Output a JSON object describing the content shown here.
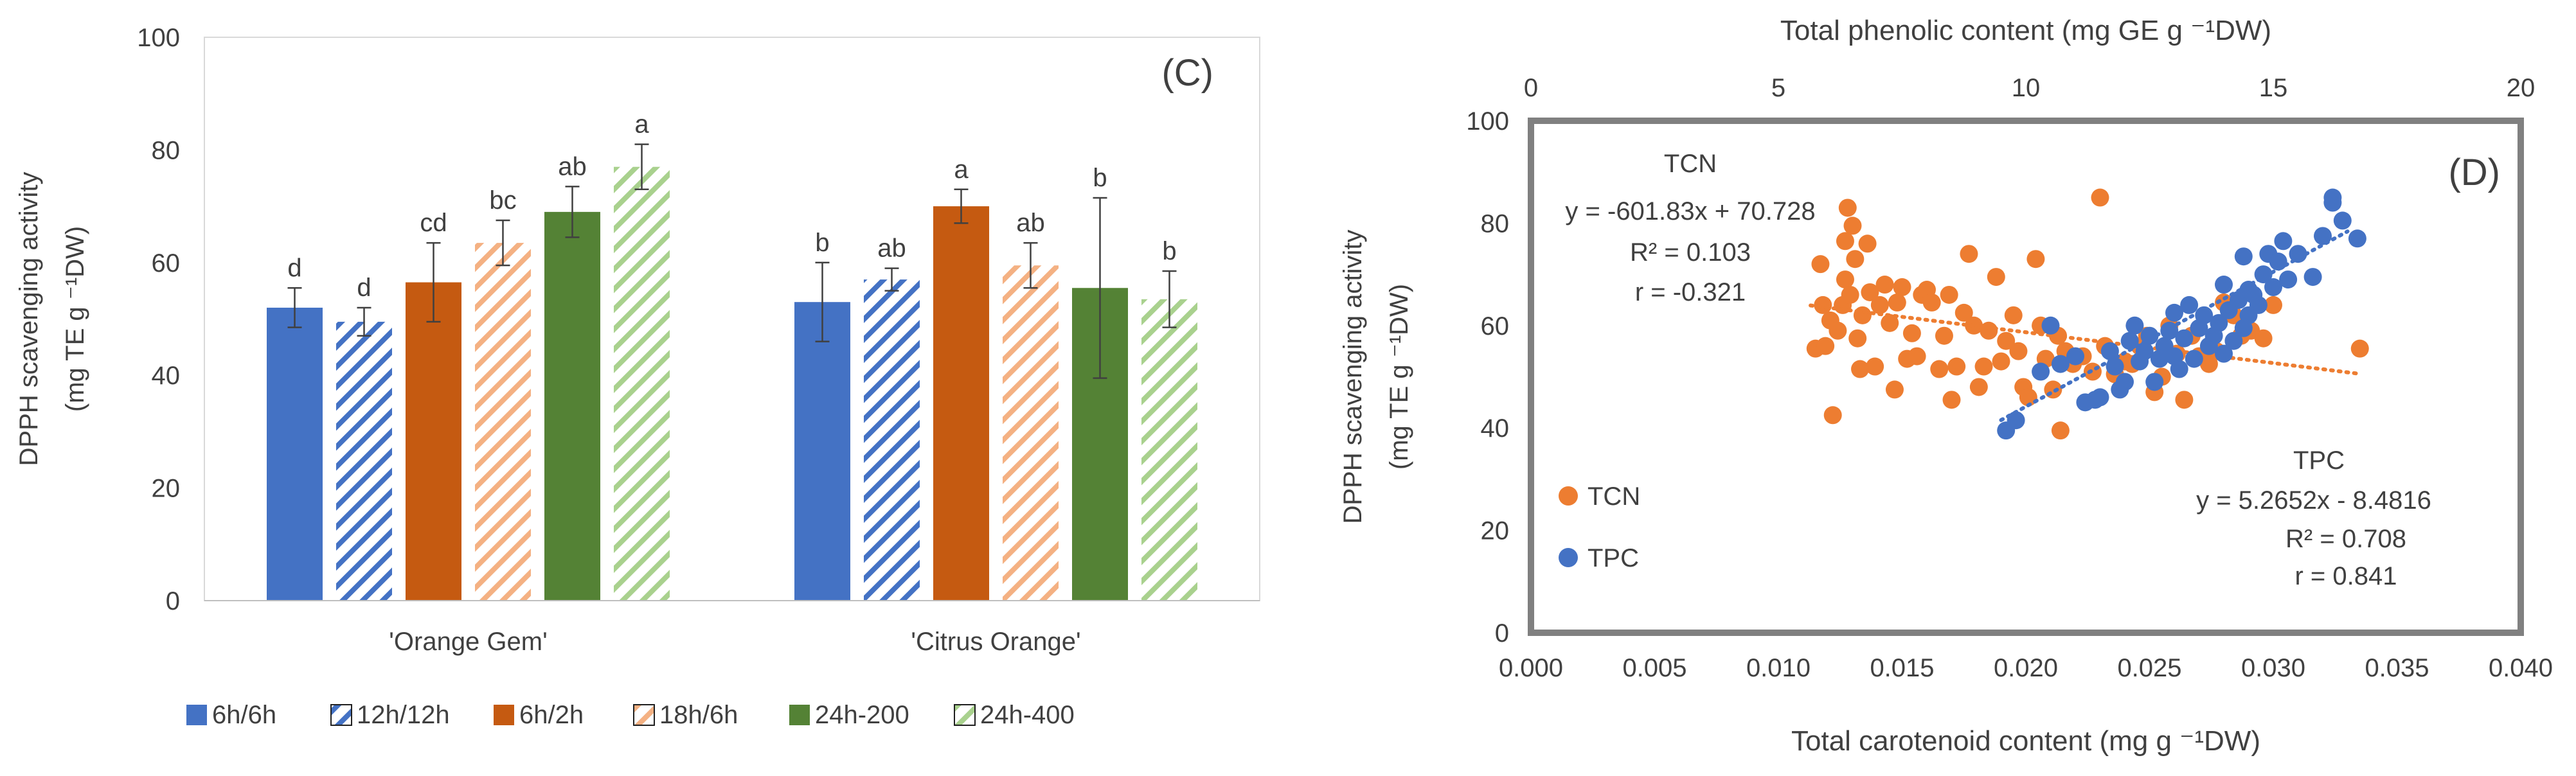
{
  "chart_data": [
    {
      "type": "bar",
      "panel_label": "(C)",
      "ylabel_line1": "DPPH scavenging activity",
      "ylabel_line2": "(mg TE g ⁻¹DW)",
      "ylim": [
        0,
        100
      ],
      "yticks": [
        0,
        20,
        40,
        60,
        80,
        100
      ],
      "categories": [
        "'Orange Gem'",
        "'Citrus Orange'"
      ],
      "legend_position": "bottom",
      "series": [
        {
          "name": "6h/6h",
          "style": "solid",
          "color": "#4472C4",
          "values": [
            52.0,
            53.0
          ],
          "errors": [
            3.5,
            7.0
          ],
          "letters": [
            "d",
            "b"
          ]
        },
        {
          "name": "12h/12h",
          "style": "hatched",
          "color": "#4472C4",
          "values": [
            49.5,
            57.0
          ],
          "errors": [
            2.5,
            2.0
          ],
          "letters": [
            "d",
            "ab"
          ]
        },
        {
          "name": "6h/2h",
          "style": "solid",
          "color": "#C55A11",
          "values": [
            56.5,
            70.0
          ],
          "errors": [
            7.0,
            3.0
          ],
          "letters": [
            "cd",
            "a"
          ]
        },
        {
          "name": "18h/6h",
          "style": "hatched",
          "color": "#F4B183",
          "values": [
            63.5,
            59.5
          ],
          "errors": [
            4.0,
            4.0
          ],
          "letters": [
            "bc",
            "ab"
          ]
        },
        {
          "name": "24h-200",
          "style": "solid",
          "color": "#548235",
          "values": [
            69.0,
            55.5
          ],
          "errors": [
            4.5,
            16.0
          ],
          "letters": [
            "ab",
            "b"
          ]
        },
        {
          "name": "24h-400",
          "style": "hatched",
          "color": "#A9D18E",
          "values": [
            77.0,
            53.5
          ],
          "errors": [
            4.0,
            5.0
          ],
          "letters": [
            "a",
            "b"
          ]
        }
      ]
    },
    {
      "type": "scatter",
      "panel_label": "(D)",
      "ylabel_line1": "DPPH scavenging activity",
      "ylabel_line2": "(mg TE g ⁻¹DW)",
      "xlabel": "Total carotenoid content  (mg g ⁻¹DW)",
      "x2label": "Total phenolic content (mg GE g ⁻¹DW)",
      "xlim": [
        0,
        0.04
      ],
      "xticks": [
        "0.000",
        "0.005",
        "0.010",
        "0.015",
        "0.020",
        "0.025",
        "0.030",
        "0.035",
        "0.040"
      ],
      "x2lim": [
        0,
        20
      ],
      "x2ticks": [
        "0",
        "5",
        "10",
        "15",
        "20"
      ],
      "ylim": [
        0,
        100
      ],
      "yticks": [
        0,
        20,
        40,
        60,
        80,
        100
      ],
      "series": [
        {
          "name": "TCN",
          "color": "#ED7D31",
          "axis": "bottom",
          "trend_line": [
            "TCN",
            "y = -601.83x + 70.728",
            "R² = 0.103",
            "r = -0.321"
          ],
          "fit": {
            "slope": -601.83,
            "intercept": 70.728,
            "x_range": [
              0.0113,
              0.0335
            ]
          },
          "points": [
            [
              0.0115,
              55.5
            ],
            [
              0.0117,
              72.0
            ],
            [
              0.0118,
              64.0
            ],
            [
              0.0119,
              56.0
            ],
            [
              0.0121,
              61.0
            ],
            [
              0.0122,
              42.5
            ],
            [
              0.0124,
              59.0
            ],
            [
              0.0126,
              64.0
            ],
            [
              0.0127,
              69.0
            ],
            [
              0.0127,
              76.5
            ],
            [
              0.0128,
              83.0
            ],
            [
              0.0129,
              66.0
            ],
            [
              0.013,
              79.5
            ],
            [
              0.0131,
              73.0
            ],
            [
              0.0132,
              57.5
            ],
            [
              0.0133,
              51.5
            ],
            [
              0.0134,
              62.0
            ],
            [
              0.0136,
              76.0
            ],
            [
              0.0137,
              66.5
            ],
            [
              0.0139,
              52.0
            ],
            [
              0.0141,
              64.0
            ],
            [
              0.0143,
              68.0
            ],
            [
              0.0145,
              60.5
            ],
            [
              0.0147,
              47.5
            ],
            [
              0.0148,
              64.5
            ],
            [
              0.015,
              67.5
            ],
            [
              0.0152,
              53.5
            ],
            [
              0.0154,
              58.5
            ],
            [
              0.0156,
              54.0
            ],
            [
              0.0158,
              66.0
            ],
            [
              0.016,
              67.0
            ],
            [
              0.0162,
              64.5
            ],
            [
              0.0165,
              51.5
            ],
            [
              0.0167,
              58.0
            ],
            [
              0.0169,
              66.0
            ],
            [
              0.017,
              45.5
            ],
            [
              0.0172,
              52.0
            ],
            [
              0.0175,
              62.5
            ],
            [
              0.0177,
              74.0
            ],
            [
              0.0179,
              60.0
            ],
            [
              0.0181,
              48.0
            ],
            [
              0.0183,
              52.0
            ],
            [
              0.0185,
              59.0
            ],
            [
              0.0188,
              69.5
            ],
            [
              0.019,
              53.0
            ],
            [
              0.0192,
              57.0
            ],
            [
              0.0195,
              62.0
            ],
            [
              0.0197,
              55.0
            ],
            [
              0.0199,
              48.0
            ],
            [
              0.0201,
              46.0
            ],
            [
              0.0204,
              73.0
            ],
            [
              0.0206,
              60.0
            ],
            [
              0.0208,
              53.5
            ],
            [
              0.0211,
              47.5
            ],
            [
              0.0213,
              58.0
            ],
            [
              0.0214,
              39.5
            ],
            [
              0.0216,
              55.0
            ],
            [
              0.0219,
              52.5
            ],
            [
              0.0223,
              54.0
            ],
            [
              0.0227,
              51.0
            ],
            [
              0.023,
              85.0
            ],
            [
              0.0232,
              56.0
            ],
            [
              0.0236,
              50.5
            ],
            [
              0.024,
              53.0
            ],
            [
              0.0243,
              52.5
            ],
            [
              0.0246,
              56.0
            ],
            [
              0.0249,
              58.0
            ],
            [
              0.0252,
              47.0
            ],
            [
              0.0255,
              50.0
            ],
            [
              0.0258,
              60.0
            ],
            [
              0.0261,
              54.5
            ],
            [
              0.0264,
              45.5
            ],
            [
              0.0267,
              58.0
            ],
            [
              0.027,
              54.0
            ],
            [
              0.0274,
              52.5
            ],
            [
              0.0277,
              55.0
            ],
            [
              0.028,
              64.5
            ],
            [
              0.0284,
              62.0
            ],
            [
              0.0287,
              58.0
            ],
            [
              0.0291,
              59.0
            ],
            [
              0.0296,
              57.5
            ],
            [
              0.03,
              64.0
            ],
            [
              0.0335,
              55.5
            ]
          ]
        },
        {
          "name": "TPC",
          "color": "#4472C4",
          "axis": "top",
          "trend_line": [
            "TPC",
            "y = 5.2652x - 8.4816",
            "R² = 0.708",
            "r = 0.841"
          ],
          "fit": {
            "slope": 5.2652,
            "intercept": -8.4816,
            "x_range": [
              9.5,
              16.5
            ]
          },
          "points": [
            [
              9.6,
              39.5
            ],
            [
              9.8,
              41.5
            ],
            [
              10.3,
              51.0
            ],
            [
              10.5,
              60.0
            ],
            [
              10.7,
              52.5
            ],
            [
              11.0,
              54.0
            ],
            [
              11.2,
              45.0
            ],
            [
              11.4,
              45.5
            ],
            [
              11.5,
              46.0
            ],
            [
              11.7,
              55.0
            ],
            [
              11.8,
              52.0
            ],
            [
              11.9,
              47.5
            ],
            [
              12.0,
              49.0
            ],
            [
              12.1,
              57.0
            ],
            [
              12.2,
              60.0
            ],
            [
              12.3,
              53.0
            ],
            [
              12.4,
              55.0
            ],
            [
              12.5,
              58.0
            ],
            [
              12.6,
              49.0
            ],
            [
              12.7,
              53.5
            ],
            [
              12.8,
              56.0
            ],
            [
              12.9,
              59.0
            ],
            [
              13.0,
              54.0
            ],
            [
              13.0,
              62.5
            ],
            [
              13.1,
              51.5
            ],
            [
              13.2,
              57.5
            ],
            [
              13.3,
              64.0
            ],
            [
              13.4,
              53.5
            ],
            [
              13.5,
              59.5
            ],
            [
              13.6,
              62.0
            ],
            [
              13.7,
              56.0
            ],
            [
              13.8,
              58.0
            ],
            [
              13.9,
              60.5
            ],
            [
              14.0,
              54.5
            ],
            [
              14.0,
              68.0
            ],
            [
              14.1,
              63.0
            ],
            [
              14.2,
              57.0
            ],
            [
              14.3,
              65.0
            ],
            [
              14.4,
              59.5
            ],
            [
              14.4,
              73.5
            ],
            [
              14.5,
              62.0
            ],
            [
              14.5,
              67.0
            ],
            [
              14.6,
              66.0
            ],
            [
              14.7,
              64.0
            ],
            [
              14.8,
              70.0
            ],
            [
              14.9,
              74.0
            ],
            [
              15.0,
              67.5
            ],
            [
              15.1,
              72.5
            ],
            [
              15.2,
              76.5
            ],
            [
              15.3,
              69.0
            ],
            [
              15.5,
              74.0
            ],
            [
              15.8,
              69.5
            ],
            [
              16.0,
              77.5
            ],
            [
              16.2,
              84.0
            ],
            [
              16.2,
              85.0
            ],
            [
              16.4,
              80.5
            ],
            [
              16.7,
              77.0
            ]
          ]
        }
      ]
    }
  ]
}
